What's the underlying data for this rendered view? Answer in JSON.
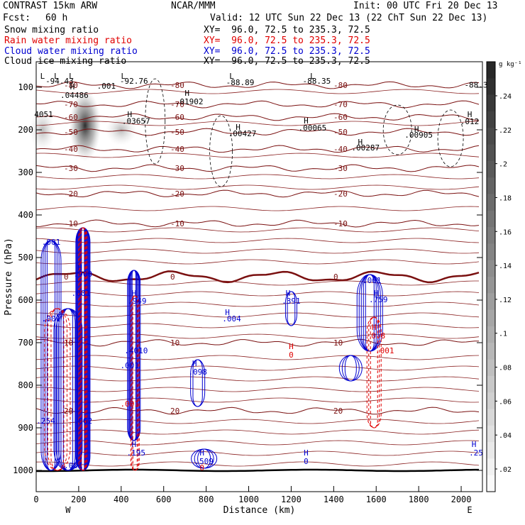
{
  "header": {
    "model": "CONTRAST 15km ARW",
    "center": "NCAR/MMM",
    "init": "Init: 00 UTC Fri 20 Dec 13",
    "fcst_label": "Fcst:",
    "fcst_value": "60 h",
    "valid": "Valid: 12 UTC Sun 22 Dec 13 (22 ChT Sun 22 Dec 13)"
  },
  "fields": [
    {
      "name": "Snow mixing ratio",
      "xy": "XY=  96.0, 72.5 to 235.3, 72.5",
      "color": "#000000"
    },
    {
      "name": "Rain water mixing ratio",
      "xy": "XY=  96.0, 72.5 to 235.3, 72.5",
      "color": "#e00000"
    },
    {
      "name": "Cloud water mixing ratio",
      "xy": "XY=  96.0, 72.5 to 235.3, 72.5",
      "color": "#0000d0"
    },
    {
      "name": "Cloud ice mixing ratio",
      "xy": "XY=  96.0, 72.5 to 235.3, 72.5",
      "color": "#000000"
    }
  ],
  "colorbar": {
    "unit": "g kg⁻¹",
    "labels": [
      ".24",
      ".22",
      ".2",
      ".18",
      ".16",
      ".14",
      ".12",
      ".1",
      ".08",
      ".06",
      ".04",
      ".02"
    ]
  },
  "chart_data": {
    "type": "contour",
    "xlabel": "Distance (km)",
    "ylabel": "Pressure (hPa)",
    "xlim": [
      0,
      2100
    ],
    "ylim": [
      1050,
      40
    ],
    "x_ticks": [
      "0",
      "200",
      "400",
      "600",
      "800",
      "1000",
      "1200",
      "1400",
      "1600",
      "1800",
      "2000"
    ],
    "y_ticks": [
      "100",
      "200",
      "300",
      "400",
      "500",
      "600",
      "700",
      "800",
      "900",
      "1000"
    ],
    "compass": {
      "left": "W",
      "right": "E"
    },
    "temperature_contours": [
      {
        "level": -80,
        "p": 95,
        "label": "-80"
      },
      {
        "level": -70,
        "p": 140,
        "label": "-70"
      },
      {
        "level": -60,
        "p": 170,
        "label": "-60"
      },
      {
        "level": -50,
        "p": 205,
        "label": "-50"
      },
      {
        "level": -40,
        "p": 245,
        "label": "-40"
      },
      {
        "level": -30,
        "p": 290,
        "label": "-30"
      },
      {
        "level": -20,
        "p": 350,
        "label": "-20"
      },
      {
        "level": -10,
        "p": 420,
        "label": "-10"
      },
      {
        "level": 0,
        "p": 545,
        "label": "0"
      },
      {
        "level": 10,
        "p": 700,
        "label": "10"
      },
      {
        "level": 20,
        "p": 860,
        "label": "20"
      }
    ],
    "extrema_labels": [
      {
        "t": "L",
        "x": 30,
        "p": 80,
        "c": "blk"
      },
      {
        "t": "L",
        "x": 95,
        "p": 80,
        "c": "blk"
      },
      {
        "t": "L",
        "x": 165,
        "p": 80,
        "c": "blk"
      },
      {
        "t": "L",
        "x": 410,
        "p": 80,
        "c": "blk"
      },
      {
        "t": "L",
        "x": 920,
        "p": 80,
        "c": "blk"
      },
      {
        "t": "L",
        "x": 1300,
        "p": 80,
        "c": "blk"
      },
      {
        "t": "-94.43",
        "x": 110,
        "p": 92,
        "c": "blk"
      },
      {
        "t": ".001",
        "x": 330,
        "p": 103,
        "c": "blk"
      },
      {
        "t": "-92.76",
        "x": 460,
        "p": 92,
        "c": "blk"
      },
      {
        "t": "-88.89",
        "x": 960,
        "p": 95,
        "c": "blk"
      },
      {
        "t": "-88.35",
        "x": 1320,
        "p": 92,
        "c": "blk"
      },
      {
        "t": "-88.3",
        "x": 2070,
        "p": 101,
        "c": "blk"
      },
      {
        "t": "H",
        "x": 170,
        "p": 105,
        "c": "blk"
      },
      {
        "t": ".04486",
        "x": 180,
        "p": 125,
        "c": "blk"
      },
      {
        "t": "4051",
        "x": 35,
        "p": 170,
        "c": "blk"
      },
      {
        "t": "H",
        "x": 440,
        "p": 170,
        "c": "blk"
      },
      {
        "t": ".03657",
        "x": 470,
        "p": 186,
        "c": "blk"
      },
      {
        "t": "H",
        "x": 710,
        "p": 120,
        "c": "blk"
      },
      {
        "t": ".01902",
        "x": 720,
        "p": 140,
        "c": "blk"
      },
      {
        "t": "H",
        "x": 950,
        "p": 200,
        "c": "blk"
      },
      {
        "t": ".00427",
        "x": 970,
        "p": 215,
        "c": "blk"
      },
      {
        "t": "H",
        "x": 1270,
        "p": 185,
        "c": "blk"
      },
      {
        "t": ".00065",
        "x": 1300,
        "p": 202,
        "c": "blk"
      },
      {
        "t": "H",
        "x": 1525,
        "p": 235,
        "c": "blk"
      },
      {
        "t": ".00287",
        "x": 1550,
        "p": 248,
        "c": "blk"
      },
      {
        "t": "H",
        "x": 1790,
        "p": 205,
        "c": "blk"
      },
      {
        "t": ".00905",
        "x": 1800,
        "p": 218,
        "c": "blk"
      },
      {
        "t": "H",
        "x": 2040,
        "p": 170,
        "c": "blk"
      },
      {
        "t": ".012",
        "x": 2040,
        "p": 187,
        "c": "blk"
      },
      {
        "t": ".001",
        "x": 70,
        "p": 470,
        "c": "blu"
      },
      {
        "t": "H",
        "x": 205,
        "p": 530,
        "c": "blu"
      },
      {
        "t": ".900",
        "x": 220,
        "p": 545,
        "c": "blu"
      },
      {
        "t": ".001",
        "x": 210,
        "p": 590,
        "c": "blu"
      },
      {
        "t": "H",
        "x": 460,
        "p": 590,
        "c": "blu"
      },
      {
        "t": ".949",
        "x": 475,
        "p": 608,
        "c": "blu"
      },
      {
        "t": "H",
        "x": 900,
        "p": 635,
        "c": "blu"
      },
      {
        "t": ".004",
        "x": 920,
        "p": 650,
        "c": "blu"
      },
      {
        "t": "H",
        "x": 1185,
        "p": 590,
        "c": "blu"
      },
      {
        "t": ".391",
        "x": 1200,
        "p": 608,
        "c": "blu"
      },
      {
        "t": ".001",
        "x": 1580,
        "p": 560,
        "c": "blu"
      },
      {
        "t": "H",
        "x": 1600,
        "p": 590,
        "c": "blu"
      },
      {
        "t": ".759",
        "x": 1610,
        "p": 605,
        "c": "blu"
      },
      {
        "t": ".4010",
        "x": 470,
        "p": 725,
        "c": "blu"
      },
      {
        "t": ".001",
        "x": 440,
        "p": 760,
        "c": "blu"
      },
      {
        "t": "H",
        "x": 745,
        "p": 755,
        "c": "blu"
      },
      {
        "t": ".098",
        "x": 760,
        "p": 775,
        "c": "blu"
      },
      {
        "t": ".001",
        "x": 70,
        "p": 650,
        "c": "blu"
      },
      {
        "t": "H",
        "x": 460,
        "p": 945,
        "c": "blu"
      },
      {
        "t": ".195",
        "x": 470,
        "p": 965,
        "c": "blu"
      },
      {
        "t": "H",
        "x": 780,
        "p": 965,
        "c": "blu"
      },
      {
        "t": ".509",
        "x": 790,
        "p": 985,
        "c": "blu"
      },
      {
        "t": "H",
        "x": 1270,
        "p": 965,
        "c": "blu"
      },
      {
        "t": "0",
        "x": 1270,
        "p": 985,
        "c": "blu"
      },
      {
        "t": "H",
        "x": 2060,
        "p": 945,
        "c": "blu"
      },
      {
        "t": ".25",
        "x": 2070,
        "p": 965,
        "c": "blu"
      },
      {
        "t": ".254",
        "x": 45,
        "p": 890,
        "c": "blu"
      },
      {
        "t": ".062",
        "x": 220,
        "p": 890,
        "c": "blu"
      },
      {
        "t": ".001",
        "x": 175,
        "p": 995,
        "c": "blu"
      },
      {
        "t": "H",
        "x": 1200,
        "p": 715,
        "c": "red"
      },
      {
        "t": "0",
        "x": 1200,
        "p": 735,
        "c": "red"
      },
      {
        "t": "H",
        "x": 1590,
        "p": 670,
        "c": "red"
      },
      {
        "t": "0.8",
        "x": 1610,
        "p": 690,
        "c": "red"
      },
      {
        "t": ".001",
        "x": 1640,
        "p": 725,
        "c": "red"
      },
      {
        "t": ".001",
        "x": 440,
        "p": 850,
        "c": "red"
      },
      {
        "t": "0",
        "x": 780,
        "p": 1000,
        "c": "red"
      }
    ]
  }
}
